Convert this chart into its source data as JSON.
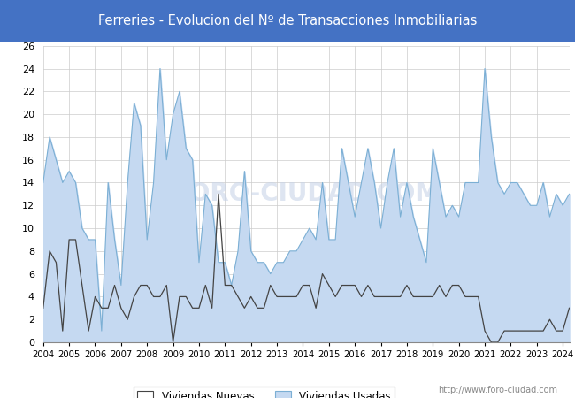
{
  "title": "Ferreries - Evolucion del Nº de Transacciones Inmobiliarias",
  "title_bg_color": "#4472c4",
  "title_text_color": "#ffffff",
  "ylim": [
    0,
    26
  ],
  "yticks": [
    0,
    2,
    4,
    6,
    8,
    10,
    12,
    14,
    16,
    18,
    20,
    22,
    24,
    26
  ],
  "legend_labels": [
    "Viviendas Nuevas",
    "Viviendas Usadas"
  ],
  "watermark": "http://www.foro-ciudad.com",
  "plot_bg_color": "#ffffff",
  "grid_color": "#cccccc",
  "line_nuevas_color": "#444444",
  "fill_usadas_color": "#c5d9f1",
  "line_usadas_color": "#7bafd4",
  "nuevas": [
    3,
    8,
    7,
    1,
    9,
    9,
    5,
    1,
    4,
    3,
    3,
    5,
    3,
    2,
    4,
    5,
    5,
    4,
    4,
    5,
    0,
    4,
    4,
    3,
    3,
    5,
    3,
    13,
    5,
    5,
    4,
    3,
    4,
    3,
    3,
    5,
    4,
    4,
    4,
    4,
    5,
    5,
    3,
    6,
    5,
    4,
    5,
    5,
    5,
    4,
    5,
    4,
    4,
    4,
    4,
    4,
    5,
    4,
    4,
    4,
    4,
    5,
    4,
    5,
    5,
    4,
    4,
    4,
    1,
    0,
    0,
    1,
    1,
    1,
    1,
    1,
    1,
    1,
    2,
    1,
    1,
    3
  ],
  "usadas": [
    14,
    18,
    16,
    14,
    15,
    14,
    10,
    9,
    9,
    1,
    14,
    9,
    5,
    14,
    21,
    19,
    9,
    14,
    24,
    16,
    20,
    22,
    17,
    16,
    7,
    13,
    12,
    7,
    7,
    5,
    8,
    15,
    8,
    7,
    7,
    6,
    7,
    7,
    8,
    8,
    9,
    10,
    9,
    14,
    9,
    9,
    17,
    14,
    11,
    14,
    17,
    14,
    10,
    14,
    17,
    11,
    14,
    11,
    9,
    7,
    17,
    14,
    11,
    12,
    11,
    14,
    14,
    14,
    24,
    18,
    14,
    13,
    14,
    14,
    13,
    12,
    12,
    14,
    11,
    13,
    12,
    13
  ]
}
